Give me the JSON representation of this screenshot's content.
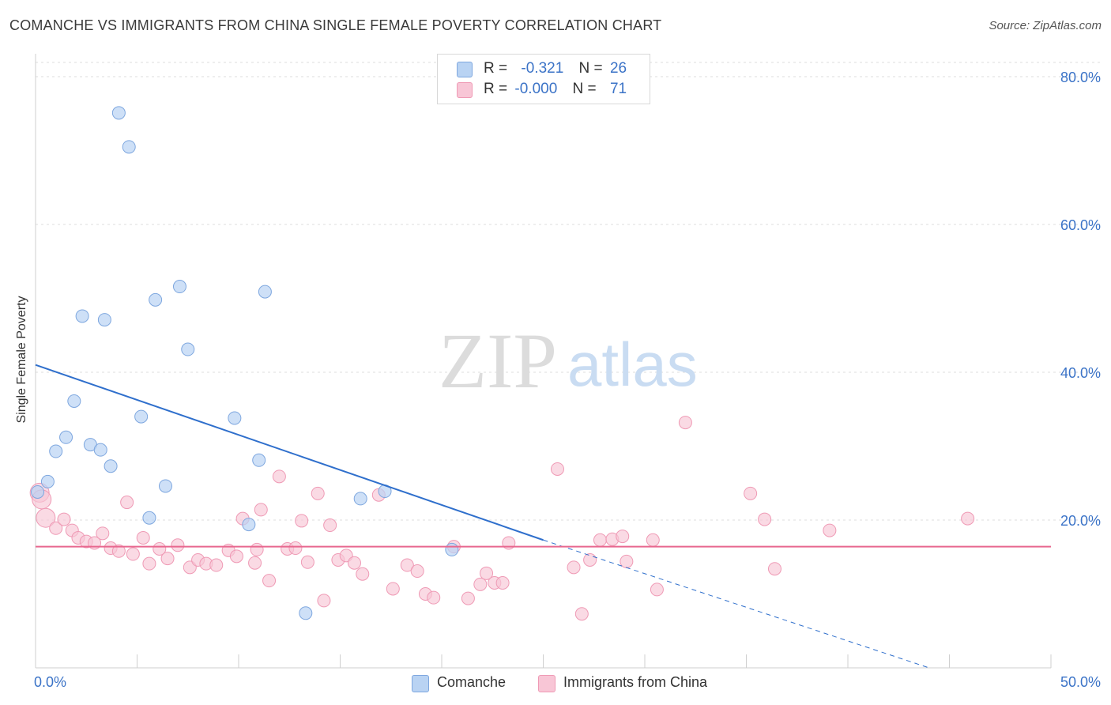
{
  "header": {
    "title": "COMANCHE VS IMMIGRANTS FROM CHINA SINGLE FEMALE POVERTY CORRELATION CHART",
    "source": "Source: ZipAtlas.com"
  },
  "watermark": {
    "zip": "ZIP",
    "atlas": "atlas"
  },
  "colors": {
    "comanche_fill": "#b9d3f3",
    "comanche_stroke": "#7ea7df",
    "comanche_line": "#2f6fcc",
    "china_fill": "#f8c6d6",
    "china_stroke": "#ef9ab5",
    "china_line": "#e8688f",
    "tick_text": "#3b73c7",
    "grid": "#dddddd"
  },
  "legend_top": {
    "rows": [
      {
        "r_label": "R =",
        "r_value": "-0.321",
        "n_label": "N =",
        "n_value": "26"
      },
      {
        "r_label": "R =",
        "r_value": "-0.000",
        "n_label": "N =",
        "n_value": "71"
      }
    ]
  },
  "legend_bottom": {
    "comanche": "Comanche",
    "china": "Immigrants from China"
  },
  "chart_data": {
    "type": "scatter",
    "title": "COMANCHE VS IMMIGRANTS FROM CHINA SINGLE FEMALE POVERTY CORRELATION CHART",
    "xlabel": "",
    "ylabel": "Single Female Poverty",
    "xlim": [
      0,
      50
    ],
    "ylim": [
      0,
      80
    ],
    "x_tick_labels": [
      "0.0%",
      "50.0%"
    ],
    "y_ticks": [
      20,
      40,
      60,
      80
    ],
    "y_tick_labels": [
      "20.0%",
      "40.0%",
      "60.0%",
      "80.0%"
    ],
    "grid": true,
    "series": [
      {
        "name": "Comanche",
        "r": -0.321,
        "n": 26,
        "trend": {
          "x0": 0,
          "y0": 41.0,
          "x1": 25,
          "y1": 17.3,
          "dash_to_x": 44,
          "dash_to_y": 0
        },
        "points": [
          [
            0.1,
            23.8
          ],
          [
            0.6,
            25.2
          ],
          [
            1.0,
            29.3
          ],
          [
            1.5,
            31.2
          ],
          [
            1.9,
            36.1
          ],
          [
            2.3,
            47.6
          ],
          [
            2.7,
            30.2
          ],
          [
            3.2,
            29.5
          ],
          [
            3.4,
            47.1
          ],
          [
            3.7,
            27.3
          ],
          [
            4.1,
            75.1
          ],
          [
            4.6,
            70.5
          ],
          [
            5.2,
            34.0
          ],
          [
            5.6,
            20.3
          ],
          [
            5.9,
            49.8
          ],
          [
            6.4,
            24.6
          ],
          [
            7.1,
            51.6
          ],
          [
            7.5,
            43.1
          ],
          [
            9.8,
            33.8
          ],
          [
            10.5,
            19.4
          ],
          [
            11.0,
            28.1
          ],
          [
            11.3,
            50.9
          ],
          [
            13.3,
            7.4
          ],
          [
            16.0,
            22.9
          ],
          [
            17.2,
            23.9
          ],
          [
            20.5,
            16.0
          ]
        ]
      },
      {
        "name": "Immigrants from China",
        "r": -0.0,
        "n": 71,
        "trend": {
          "x0": 0,
          "y0": 16.4,
          "x1": 50,
          "y1": 16.4
        },
        "points": [
          [
            0.2,
            23.7
          ],
          [
            0.5,
            20.3
          ],
          [
            1.0,
            18.9
          ],
          [
            1.4,
            20.1
          ],
          [
            1.8,
            18.6
          ],
          [
            2.1,
            17.6
          ],
          [
            2.5,
            17.1
          ],
          [
            2.9,
            16.9
          ],
          [
            3.3,
            18.2
          ],
          [
            3.7,
            16.2
          ],
          [
            4.1,
            15.8
          ],
          [
            4.5,
            22.4
          ],
          [
            4.8,
            15.4
          ],
          [
            5.3,
            17.6
          ],
          [
            5.6,
            14.1
          ],
          [
            6.1,
            16.1
          ],
          [
            6.5,
            14.8
          ],
          [
            7.0,
            16.6
          ],
          [
            7.6,
            13.6
          ],
          [
            8.0,
            14.6
          ],
          [
            8.4,
            14.1
          ],
          [
            8.9,
            13.9
          ],
          [
            9.5,
            15.9
          ],
          [
            9.9,
            15.1
          ],
          [
            10.2,
            20.2
          ],
          [
            10.8,
            14.2
          ],
          [
            11.1,
            21.4
          ],
          [
            11.5,
            11.8
          ],
          [
            12.0,
            25.9
          ],
          [
            12.4,
            16.1
          ],
          [
            12.8,
            16.2
          ],
          [
            13.1,
            19.9
          ],
          [
            13.4,
            14.3
          ],
          [
            13.9,
            23.6
          ],
          [
            14.2,
            9.1
          ],
          [
            14.5,
            19.3
          ],
          [
            14.9,
            14.6
          ],
          [
            15.3,
            15.2
          ],
          [
            15.7,
            14.2
          ],
          [
            16.1,
            12.7
          ],
          [
            16.9,
            23.4
          ],
          [
            17.6,
            10.7
          ],
          [
            18.3,
            13.9
          ],
          [
            18.8,
            13.1
          ],
          [
            19.2,
            10.0
          ],
          [
            19.6,
            9.5
          ],
          [
            20.6,
            16.4
          ],
          [
            21.3,
            9.4
          ],
          [
            21.9,
            11.3
          ],
          [
            22.2,
            12.8
          ],
          [
            22.6,
            11.5
          ],
          [
            23.0,
            11.5
          ],
          [
            23.3,
            16.9
          ],
          [
            25.7,
            26.9
          ],
          [
            26.5,
            13.6
          ],
          [
            26.9,
            7.3
          ],
          [
            27.3,
            14.6
          ],
          [
            27.8,
            17.3
          ],
          [
            28.4,
            17.4
          ],
          [
            28.9,
            17.8
          ],
          [
            29.1,
            14.4
          ],
          [
            30.4,
            17.3
          ],
          [
            30.6,
            10.6
          ],
          [
            32.0,
            33.2
          ],
          [
            35.2,
            23.6
          ],
          [
            35.9,
            20.1
          ],
          [
            36.4,
            13.4
          ],
          [
            39.1,
            18.6
          ],
          [
            45.9,
            20.2
          ],
          [
            0.3,
            22.8
          ],
          [
            10.9,
            16.0
          ]
        ]
      }
    ]
  }
}
